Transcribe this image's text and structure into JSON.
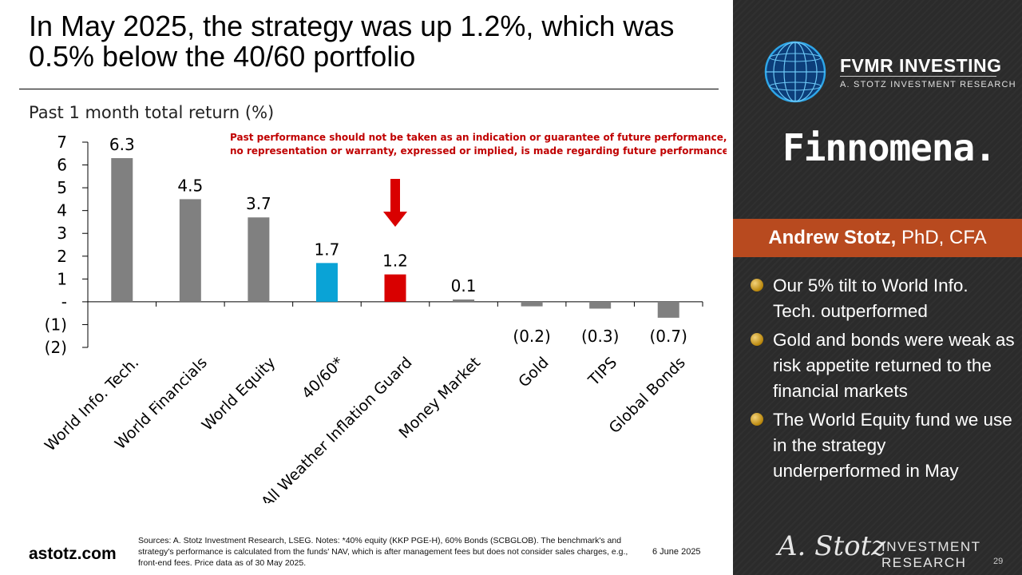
{
  "slide": {
    "title": "In May 2025, the strategy was up 1.2%, which was 0.5% below the 40/60 portfolio",
    "sources": "Sources: A. Stotz Investment Research, LSEG. Notes: *40% equity (KKP PGE-H), 60% Bonds (SCBGLOB). The benchmark's and strategy's performance is calculated from the funds' NAV, which is after management fees but does not consider sales charges, e.g., front-end fees. Price data as of 30 May 2025.",
    "website": "astotz.com",
    "date": "6 June 2025",
    "page_number": "29"
  },
  "sidebar": {
    "brand": "FVMR INVESTING",
    "brand_sub": "A. STOTZ INVESTMENT RESEARCH",
    "partner": "Finnomena.",
    "presenter_name": "Andrew Stotz,",
    "presenter_title": " PhD, CFA",
    "bullets": [
      "Our 5% tilt to World Info. Tech. outperformed",
      "Gold and bonds were weak as risk appetite returned to the financial markets",
      "The World Equity fund we use in the strategy underperformed in May"
    ],
    "signature": "A. Stotz",
    "footer_line1": "INVESTMENT",
    "footer_line2": "RESEARCH"
  },
  "chart_data": {
    "type": "bar",
    "subtitle": "Past 1 month total return (%)",
    "disclaimer": [
      "Past performance should not be taken as an indication or guarantee of future performance, and",
      "no representation or warranty, expressed or implied, is made regarding future performance."
    ],
    "categories": [
      "World Info. Tech.",
      "World Financials",
      "World Equity",
      "40/60*",
      "All Weather Inflation Guard",
      "Money Market",
      "Gold",
      "TIPS",
      "Global Bonds"
    ],
    "values": [
      6.3,
      4.5,
      3.7,
      1.7,
      1.2,
      0.1,
      -0.2,
      -0.3,
      -0.7
    ],
    "value_labels": [
      "6.3",
      "4.5",
      "3.7",
      "1.7",
      "1.2",
      "0.1",
      "(0.2)",
      "(0.3)",
      "(0.7)"
    ],
    "bar_colors": [
      "#808080",
      "#808080",
      "#808080",
      "#0aa3d6",
      "#d90000",
      "#808080",
      "#808080",
      "#808080",
      "#808080"
    ],
    "ylim": [
      -2,
      7
    ],
    "yticks": [
      7,
      6,
      5,
      4,
      3,
      2,
      1,
      0,
      -1,
      -2
    ],
    "ytick_labels": [
      "7",
      "6",
      "5",
      "4",
      "3",
      "2",
      "1",
      "-",
      "(1)",
      "(2)"
    ],
    "highlight_index": 4,
    "grid": false,
    "legend": "none"
  },
  "colors": {
    "arrow": "#d90000",
    "disclaimer": "#c00000",
    "presenter_band": "#b84a1f"
  }
}
